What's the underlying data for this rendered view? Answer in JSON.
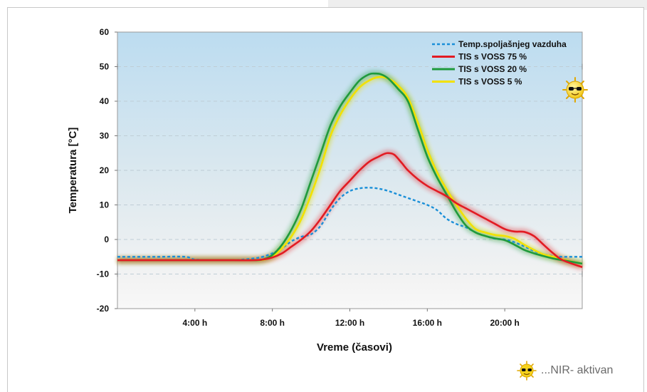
{
  "chart_data": {
    "type": "line",
    "xlabel": "Vreme (časovi)",
    "ylabel": "Temperatura [°C]",
    "xlim": [
      0,
      24
    ],
    "ylim": [
      -20,
      60
    ],
    "grid": true,
    "legend_position": "top-right",
    "y_ticks": [
      60,
      50,
      40,
      30,
      20,
      10,
      0,
      -10,
      -20
    ],
    "y_tick_labels": [
      "60",
      "50",
      "40",
      "30",
      "20",
      "10",
      "0",
      "-10",
      "-20"
    ],
    "x_ticks": [
      4,
      8,
      12,
      16,
      20
    ],
    "x_tick_labels": [
      "4:00 h",
      "8:00 h",
      "12:00 h",
      "16:00 h",
      "20:00 h"
    ],
    "series": [
      {
        "name": "Temp.spoljašnjeg vazduha",
        "color": "#1a8fd8",
        "dash": true,
        "x": [
          0,
          2,
          3.5,
          4,
          5,
          6,
          7,
          7.5,
          8,
          8.5,
          9,
          9.5,
          10,
          10.5,
          11,
          11.5,
          12,
          12.5,
          13,
          13.5,
          14,
          14.5,
          15,
          15.5,
          16,
          16.5,
          17,
          17.5,
          18,
          18.5,
          19,
          19.5,
          20,
          20.5,
          21,
          21.5,
          22,
          22.5,
          23,
          24
        ],
        "y": [
          -5,
          -5,
          -5,
          -5.8,
          -6,
          -6,
          -5.5,
          -5,
          -4,
          -2.5,
          -0.5,
          0.8,
          1.5,
          4,
          8.5,
          12,
          14,
          14.8,
          15,
          14.7,
          14,
          13,
          12,
          11,
          10,
          8.5,
          6,
          4.5,
          3.5,
          2,
          1,
          0.2,
          0,
          -0.8,
          -2,
          -3.3,
          -4.3,
          -4.8,
          -5,
          -5
        ]
      },
      {
        "name": "TIS s VOSS 75 %",
        "color": "#e21b23",
        "x": [
          0,
          2,
          4,
          6,
          7,
          7.5,
          8,
          8.5,
          9,
          9.5,
          10,
          10.5,
          11,
          11.5,
          12,
          12.5,
          13,
          13.5,
          13.8,
          14,
          14.3,
          14.7,
          15,
          15.5,
          16,
          16.5,
          17,
          17.5,
          18,
          18.5,
          19,
          19.5,
          20,
          20.5,
          21,
          21.5,
          22,
          22.5,
          23,
          24
        ],
        "y": [
          -6,
          -6,
          -6,
          -6,
          -6,
          -5.8,
          -5.2,
          -4,
          -2,
          0,
          2.5,
          6,
          10,
          14,
          17,
          20,
          22.5,
          24,
          24.8,
          25,
          24.5,
          22,
          20,
          17.5,
          15.5,
          14,
          12.5,
          10.5,
          9,
          7.5,
          6,
          4.5,
          3,
          2.3,
          2.2,
          1,
          -1.5,
          -4,
          -6,
          -8
        ]
      },
      {
        "name": "TIS s VOSS 20 %",
        "color": "#1f9a3c",
        "x": [
          0,
          2,
          4,
          6,
          7,
          7.5,
          8,
          8.5,
          9,
          9.5,
          10,
          10.5,
          11,
          11.5,
          12,
          12.5,
          13,
          13.3,
          13.6,
          14,
          14.5,
          15,
          15.5,
          16,
          16.5,
          17,
          17.5,
          18,
          18.5,
          19,
          19.5,
          20,
          20.5,
          21,
          21.5,
          22,
          22.5,
          23,
          24
        ],
        "y": [
          -6,
          -6,
          -6,
          -6,
          -6,
          -5.8,
          -4.5,
          -1.5,
          3,
          9,
          17,
          25,
          33,
          38.5,
          42.5,
          46,
          47.8,
          48,
          47.8,
          46.5,
          43.5,
          40,
          32,
          24,
          18,
          13,
          8,
          4,
          2,
          1,
          0.3,
          -0.2,
          -1.5,
          -3,
          -4,
          -4.8,
          -5.5,
          -6,
          -7
        ]
      },
      {
        "name": "TIS s VOSS 5 %",
        "color": "#f2e100",
        "x": [
          0,
          2,
          4,
          6,
          7,
          7.5,
          8,
          8.5,
          9,
          9.5,
          10,
          10.5,
          11,
          11.5,
          12,
          12.5,
          13,
          13.5,
          14,
          14.5,
          15,
          15.5,
          16,
          16.5,
          17,
          17.5,
          18,
          18.5,
          19,
          19.5,
          20,
          20.5,
          21,
          21.5,
          22,
          22.5,
          23,
          24
        ],
        "y": [
          -6,
          -6,
          -6,
          -6,
          -6,
          -5.9,
          -5,
          -2.5,
          1,
          6,
          13,
          21,
          30,
          36,
          40.5,
          44,
          46,
          47,
          46.5,
          44.5,
          41,
          34,
          26,
          19.5,
          14.5,
          10,
          6,
          3,
          2,
          1.3,
          1,
          0.2,
          -1.5,
          -3,
          -4.3,
          -5,
          -5.8,
          -7
        ]
      }
    ],
    "footer_note": "...NIR- aktivan",
    "background_colors": {
      "top": "#bcdcf0",
      "bottom": "#f8f8f8"
    }
  }
}
